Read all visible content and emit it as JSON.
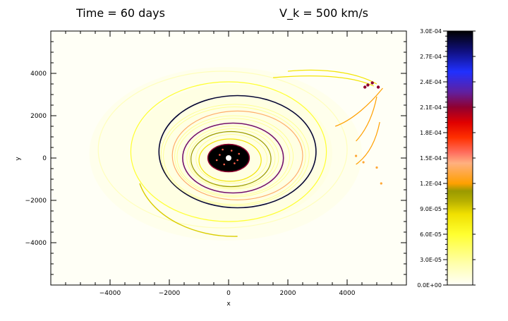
{
  "chart_data": {
    "type": "heatmap",
    "title_left": "Time = 60 days",
    "title_right": "V_k = 500 km/s",
    "xlabel": "x",
    "ylabel": "y",
    "xlim": [
      -6000,
      6000
    ],
    "ylim": [
      -6000,
      6000
    ],
    "xticks": [
      -4000,
      -2000,
      0,
      2000,
      4000
    ],
    "xtick_labels": [
      "−4000",
      "−2000",
      "0",
      "2000",
      "4000"
    ],
    "yticks": [
      -4000,
      -2000,
      0,
      2000,
      4000
    ],
    "ytick_labels": [
      "−4000",
      "−2000",
      "0",
      "2000",
      "4000"
    ],
    "grid": false,
    "colorbar": {
      "min": 0,
      "max": 0.0003,
      "ticks": [
        0,
        3e-05,
        6e-05,
        9e-05,
        0.00012,
        0.00015,
        0.00018,
        0.00021,
        0.00024,
        0.00027,
        0.0003
      ],
      "tick_labels": [
        "0.0E+00",
        "3.0E-05",
        "6.0E-05",
        "9.0E-05",
        "1.2E-04",
        "1.5E-04",
        "1.8E-04",
        "2.1E-04",
        "2.4E-04",
        "2.7E-04",
        "3.0E-04"
      ],
      "colors": [
        {
          "value": 0.0,
          "color": "#fffff8"
        },
        {
          "value": 0.08,
          "color": "#ffffb0"
        },
        {
          "value": 0.2,
          "color": "#ffff30"
        },
        {
          "value": 0.28,
          "color": "#f0e000"
        },
        {
          "value": 0.33,
          "color": "#b8b000"
        },
        {
          "value": 0.37,
          "color": "#9a9a00"
        },
        {
          "value": 0.4,
          "color": "#ffa000"
        },
        {
          "value": 0.48,
          "color": "#ffb080"
        },
        {
          "value": 0.52,
          "color": "#ff7060"
        },
        {
          "value": 0.58,
          "color": "#ff3000"
        },
        {
          "value": 0.64,
          "color": "#e00000"
        },
        {
          "value": 0.7,
          "color": "#900030"
        },
        {
          "value": 0.76,
          "color": "#6020a0"
        },
        {
          "value": 0.84,
          "color": "#2030ff"
        },
        {
          "value": 0.92,
          "color": "#101080"
        },
        {
          "value": 1.0,
          "color": "#000000"
        }
      ]
    },
    "features": {
      "core": {
        "x": 0,
        "y": 0,
        "rx": 700,
        "ry": 650,
        "value": 0.0003
      },
      "rings": [
        {
          "rx": 2650,
          "ry": 2650,
          "cx": 300,
          "cy": 300,
          "value": 0.00029
        },
        {
          "rx": 2200,
          "ry": 2100,
          "cx": 300,
          "cy": 120,
          "value": 0.00014
        },
        {
          "rx": 1700,
          "ry": 1650,
          "cx": 150,
          "cy": 0,
          "value": 0.00022
        },
        {
          "rx": 1350,
          "ry": 1300,
          "cx": 80,
          "cy": -50,
          "value": 0.00011
        },
        {
          "rx": 1050,
          "ry": 1000,
          "cx": 50,
          "cy": -100,
          "value": 8e-05
        },
        {
          "rx": 3300,
          "ry": 3300,
          "cx": 0,
          "cy": 300,
          "value": 6e-05
        },
        {
          "rx": 4200,
          "ry": 3700,
          "cx": -200,
          "cy": 400,
          "value": 2e-05
        }
      ]
    }
  }
}
